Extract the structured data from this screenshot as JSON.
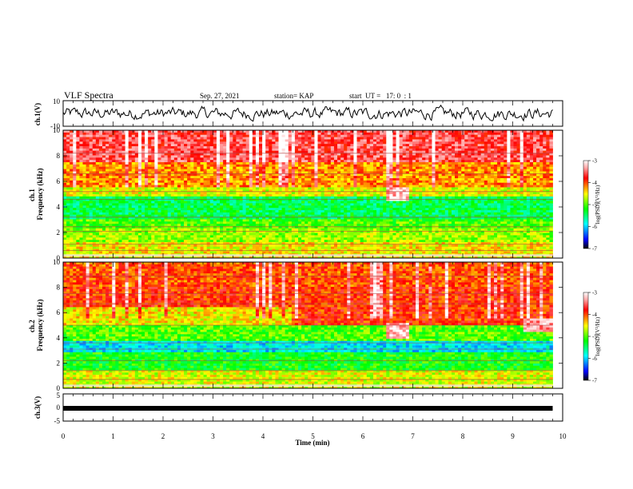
{
  "header": {
    "title": "VLF Spectra",
    "date": "Sep. 27, 2021",
    "station": "station= KAP",
    "start_ut": "start  UT =   17: 0  : 1"
  },
  "chart_data": [
    {
      "type": "line",
      "ylabel": "ch.1(V)",
      "ylim": [
        -10,
        10
      ],
      "xlim": [
        0,
        10
      ],
      "yticks": [
        "10",
        "-10"
      ],
      "description_value": "waveform amplitude oscillating roughly between -5 and 5 V over 0 to 9.8 min"
    },
    {
      "type": "heatmap",
      "ylabel": "ch.1\nFrequency (kHz)",
      "ylim": [
        0,
        10
      ],
      "xlim": [
        0,
        10
      ],
      "yticks": [
        "0",
        "2",
        "4",
        "6",
        "8",
        "10"
      ],
      "data_end_min": 9.8,
      "colorbar": {
        "label": "log(PSD)(V²/Hz)",
        "range": [
          -7,
          -3
        ],
        "ticks": [
          "-3",
          "-4",
          "-5",
          "-6",
          "-7"
        ]
      }
    },
    {
      "type": "heatmap",
      "ylabel": "ch.2\nFrequency (kHz)",
      "ylim": [
        0,
        10
      ],
      "xlim": [
        0,
        10
      ],
      "yticks": [
        "0",
        "2",
        "4",
        "6",
        "8",
        "10"
      ],
      "data_end_min": 9.8,
      "colorbar": {
        "label": "log(PSD)(V²/Hz)",
        "range": [
          -7,
          -3
        ],
        "ticks": [
          "-3",
          "-4",
          "-5",
          "-6",
          "-7"
        ]
      }
    },
    {
      "type": "line",
      "ylabel": "ch.3(V)",
      "ylim": [
        -5,
        5
      ],
      "xlim": [
        0,
        10
      ],
      "yticks": [
        "5",
        "0",
        "-5"
      ],
      "constant_value": -0.5,
      "xlabel": "Time (min)",
      "xticks": [
        "0",
        "1",
        "2",
        "3",
        "4",
        "5",
        "6",
        "7",
        "8",
        "9",
        "10"
      ]
    }
  ]
}
